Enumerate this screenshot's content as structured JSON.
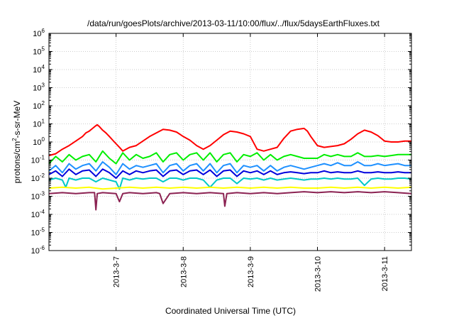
{
  "chart_data": {
    "type": "line",
    "title": "/data/run/goesPlots/archive/2013-03-11/10:00/flux/../flux/5daysEarthFluxes.txt",
    "xlabel": "Coordinated Universal Time (UTC)",
    "ylabel_parts": [
      "protons/cm",
      "2",
      "-s-sr-MeV"
    ],
    "yscale": "log",
    "ylim": [
      1e-06,
      1000000.0
    ],
    "xlim": [
      0,
      5.4
    ],
    "x_origin": "2013-03-06",
    "grid": true,
    "y_ticks": [
      {
        "base": "10",
        "exp": "-6",
        "value": -6
      },
      {
        "base": "10",
        "exp": "-5",
        "value": -5
      },
      {
        "base": "10",
        "exp": "-4",
        "value": -4
      },
      {
        "base": "10",
        "exp": "-3",
        "value": -3
      },
      {
        "base": "10",
        "exp": "-2",
        "value": -2
      },
      {
        "base": "10",
        "exp": "-1",
        "value": -1
      },
      {
        "base": "10",
        "exp": "0",
        "value": 0
      },
      {
        "base": "10",
        "exp": "1",
        "value": 1
      },
      {
        "base": "10",
        "exp": "2",
        "value": 2
      },
      {
        "base": "10",
        "exp": "3",
        "value": 3
      },
      {
        "base": "10",
        "exp": "4",
        "value": 4
      },
      {
        "base": "10",
        "exp": "5",
        "value": 5
      },
      {
        "base": "10",
        "exp": "6",
        "value": 6
      }
    ],
    "x_ticks": [
      {
        "label": "2013-3-7",
        "value": 1
      },
      {
        "label": "2013-3-8",
        "value": 2
      },
      {
        "label": "2013-3-9",
        "value": 3
      },
      {
        "label": "2013-3-10",
        "value": 4
      },
      {
        "label": "2013-3-11",
        "value": 5
      }
    ],
    "series": [
      {
        "color": "#ff0000",
        "x": [
          0,
          0.1,
          0.2,
          0.3,
          0.4,
          0.5,
          0.55,
          0.6,
          0.65,
          0.7,
          0.72,
          0.75,
          0.8,
          0.85,
          0.9,
          0.95,
          1.0,
          1.05,
          1.1,
          1.2,
          1.3,
          1.4,
          1.5,
          1.6,
          1.7,
          1.8,
          1.9,
          2.0,
          2.1,
          2.2,
          2.3,
          2.4,
          2.5,
          2.6,
          2.7,
          2.8,
          2.9,
          3.0,
          3.1,
          3.2,
          3.3,
          3.4,
          3.5,
          3.6,
          3.7,
          3.8,
          3.85,
          3.9,
          4.0,
          4.1,
          4.2,
          4.3,
          4.4,
          4.5,
          4.6,
          4.7,
          4.8,
          4.9,
          5.0,
          5.1,
          5.2,
          5.3,
          5.4
        ],
        "y": [
          -0.75,
          -0.65,
          -0.4,
          -0.2,
          0.05,
          0.3,
          0.5,
          0.6,
          0.75,
          0.9,
          0.95,
          0.85,
          0.65,
          0.5,
          0.3,
          0.1,
          -0.1,
          -0.3,
          -0.5,
          -0.3,
          -0.2,
          0.05,
          0.3,
          0.5,
          0.7,
          0.65,
          0.55,
          0.3,
          0.1,
          -0.2,
          -0.4,
          -0.2,
          0.1,
          0.4,
          0.6,
          0.55,
          0.45,
          0.3,
          -0.4,
          -0.5,
          -0.4,
          -0.3,
          0.2,
          0.6,
          0.7,
          0.75,
          0.6,
          0.3,
          -0.2,
          -0.3,
          -0.25,
          -0.2,
          -0.1,
          0.15,
          0.45,
          0.65,
          0.55,
          0.35,
          0.05,
          0.0,
          0.0,
          0.05,
          0.05
        ]
      },
      {
        "color": "#00ee00",
        "x": [
          0,
          0.1,
          0.2,
          0.3,
          0.4,
          0.5,
          0.6,
          0.7,
          0.8,
          0.9,
          1.0,
          1.1,
          1.2,
          1.3,
          1.4,
          1.5,
          1.6,
          1.7,
          1.8,
          1.9,
          2.0,
          2.1,
          2.2,
          2.3,
          2.4,
          2.5,
          2.6,
          2.7,
          2.8,
          2.9,
          3.0,
          3.1,
          3.2,
          3.3,
          3.4,
          3.5,
          3.6,
          3.7,
          3.8,
          3.9,
          4.0,
          4.1,
          4.2,
          4.3,
          4.4,
          4.5,
          4.6,
          4.7,
          4.8,
          4.9,
          5.0,
          5.1,
          5.2,
          5.3,
          5.4
        ],
        "y": [
          -1.2,
          -0.8,
          -1.1,
          -0.7,
          -1.0,
          -0.8,
          -0.7,
          -1.1,
          -0.5,
          -0.9,
          -1.2,
          -0.6,
          -1.0,
          -0.7,
          -0.9,
          -0.8,
          -0.6,
          -1.1,
          -0.7,
          -0.6,
          -1.0,
          -0.7,
          -0.6,
          -1.0,
          -0.6,
          -1.1,
          -0.7,
          -0.6,
          -1.1,
          -0.7,
          -0.8,
          -0.6,
          -1.0,
          -0.7,
          -1.0,
          -0.8,
          -0.7,
          -0.8,
          -0.9,
          -0.9,
          -0.9,
          -0.7,
          -0.8,
          -0.7,
          -0.8,
          -0.8,
          -0.6,
          -0.8,
          -0.8,
          -0.75,
          -0.8,
          -0.75,
          -0.7,
          -0.7,
          -0.7
        ]
      },
      {
        "color": "#1e90ff",
        "x": [
          0,
          0.1,
          0.2,
          0.3,
          0.4,
          0.5,
          0.6,
          0.7,
          0.8,
          0.9,
          1.0,
          1.1,
          1.2,
          1.3,
          1.4,
          1.5,
          1.6,
          1.7,
          1.8,
          1.9,
          2.0,
          2.1,
          2.2,
          2.3,
          2.4,
          2.5,
          2.6,
          2.7,
          2.8,
          2.9,
          3.0,
          3.1,
          3.2,
          3.3,
          3.4,
          3.5,
          3.6,
          3.7,
          3.8,
          3.9,
          4.0,
          4.1,
          4.2,
          4.3,
          4.4,
          4.5,
          4.6,
          4.7,
          4.8,
          4.9,
          5.0,
          5.1,
          5.2,
          5.3,
          5.4
        ],
        "y": [
          -1.6,
          -1.3,
          -1.7,
          -1.2,
          -1.5,
          -1.3,
          -1.2,
          -1.6,
          -1.1,
          -1.4,
          -1.8,
          -1.2,
          -1.5,
          -1.3,
          -1.4,
          -1.3,
          -1.2,
          -1.7,
          -1.3,
          -1.2,
          -1.6,
          -1.3,
          -1.2,
          -1.6,
          -1.2,
          -1.7,
          -1.3,
          -1.2,
          -1.7,
          -1.3,
          -1.4,
          -1.3,
          -1.6,
          -1.3,
          -1.6,
          -1.4,
          -1.3,
          -1.4,
          -1.5,
          -1.4,
          -1.3,
          -1.2,
          -1.3,
          -1.15,
          -1.3,
          -1.3,
          -1.1,
          -1.3,
          -1.3,
          -1.2,
          -1.3,
          -1.25,
          -1.2,
          -1.3,
          -1.3
        ]
      },
      {
        "color": "#0000dd",
        "x": [
          0,
          0.1,
          0.2,
          0.3,
          0.4,
          0.5,
          0.6,
          0.7,
          0.8,
          0.9,
          1.0,
          1.1,
          1.2,
          1.3,
          1.4,
          1.5,
          1.6,
          1.7,
          1.8,
          1.9,
          2.0,
          2.1,
          2.2,
          2.3,
          2.4,
          2.5,
          2.6,
          2.7,
          2.8,
          2.9,
          3.0,
          3.1,
          3.2,
          3.3,
          3.4,
          3.5,
          3.6,
          3.7,
          3.8,
          3.9,
          4.0,
          4.1,
          4.2,
          4.3,
          4.4,
          4.5,
          4.6,
          4.7,
          4.8,
          4.9,
          5.0,
          5.1,
          5.2,
          5.3,
          5.4
        ],
        "y": [
          -1.8,
          -1.6,
          -1.9,
          -1.5,
          -1.8,
          -1.6,
          -1.55,
          -1.9,
          -1.5,
          -1.7,
          -2.0,
          -1.6,
          -1.8,
          -1.6,
          -1.7,
          -1.6,
          -1.55,
          -1.9,
          -1.6,
          -1.55,
          -1.8,
          -1.6,
          -1.55,
          -1.8,
          -1.55,
          -1.9,
          -1.6,
          -1.55,
          -1.9,
          -1.6,
          -1.7,
          -1.6,
          -1.8,
          -1.6,
          -1.8,
          -1.7,
          -1.65,
          -1.7,
          -1.75,
          -1.7,
          -1.7,
          -1.6,
          -1.7,
          -1.65,
          -1.7,
          -1.7,
          -1.6,
          -1.7,
          -1.7,
          -1.65,
          -1.7,
          -1.7,
          -1.65,
          -1.7,
          -1.7
        ]
      },
      {
        "color": "#00c8c8",
        "x": [
          0,
          0.1,
          0.2,
          0.25,
          0.3,
          0.4,
          0.5,
          0.6,
          0.7,
          0.8,
          0.9,
          1.0,
          1.05,
          1.1,
          1.2,
          1.3,
          1.4,
          1.5,
          1.6,
          1.7,
          1.8,
          1.9,
          2.0,
          2.1,
          2.2,
          2.3,
          2.4,
          2.5,
          2.6,
          2.7,
          2.8,
          2.9,
          3.0,
          3.1,
          3.2,
          3.3,
          3.4,
          3.5,
          3.6,
          3.7,
          3.8,
          3.9,
          4.0,
          4.1,
          4.2,
          4.3,
          4.4,
          4.5,
          4.6,
          4.7,
          4.8,
          4.9,
          5.0,
          5.1,
          5.2,
          5.3,
          5.4
        ],
        "y": [
          -2.1,
          -2.0,
          -2.1,
          -2.5,
          -2.0,
          -2.1,
          -2.0,
          -2.0,
          -2.2,
          -2.0,
          -2.1,
          -2.2,
          -2.6,
          -2.0,
          -2.1,
          -2.0,
          -2.05,
          -2.0,
          -2.0,
          -2.2,
          -2.0,
          -2.0,
          -2.1,
          -2.0,
          -2.0,
          -2.1,
          -2.5,
          -2.1,
          -2.0,
          -2.0,
          -2.3,
          -2.0,
          -2.05,
          -2.0,
          -2.1,
          -2.0,
          -2.1,
          -2.05,
          -2.0,
          -2.05,
          -2.1,
          -2.05,
          -2.05,
          -2.0,
          -2.05,
          -2.0,
          -2.05,
          -2.05,
          -2.0,
          -2.4,
          -2.05,
          -2.0,
          -2.05,
          -2.05,
          -2.0,
          -2.0,
          -2.05
        ]
      },
      {
        "color": "#ffff00",
        "x": [
          0,
          0.2,
          0.4,
          0.6,
          0.8,
          1.0,
          1.2,
          1.4,
          1.6,
          1.8,
          2.0,
          2.2,
          2.4,
          2.6,
          2.8,
          3.0,
          3.2,
          3.4,
          3.6,
          3.8,
          4.0,
          4.2,
          4.4,
          4.6,
          4.8,
          5.0,
          5.2,
          5.4
        ],
        "y": [
          -2.55,
          -2.5,
          -2.55,
          -2.5,
          -2.6,
          -2.55,
          -2.5,
          -2.55,
          -2.5,
          -2.55,
          -2.5,
          -2.55,
          -2.5,
          -2.55,
          -2.5,
          -2.55,
          -2.5,
          -2.55,
          -2.5,
          -2.55,
          -2.55,
          -2.5,
          -2.55,
          -2.5,
          -2.55,
          -2.5,
          -2.55,
          -2.5
        ]
      },
      {
        "color": "#8b2252",
        "x": [
          0,
          0.2,
          0.4,
          0.6,
          0.68,
          0.7,
          0.72,
          0.8,
          1.0,
          1.05,
          1.1,
          1.2,
          1.4,
          1.6,
          1.65,
          1.7,
          1.8,
          2.0,
          2.2,
          2.4,
          2.6,
          2.62,
          2.65,
          2.8,
          3.0,
          3.2,
          3.4,
          3.6,
          3.8,
          4.0,
          4.2,
          4.4,
          4.6,
          4.8,
          5.0,
          5.2,
          5.4
        ],
        "y": [
          -2.85,
          -2.8,
          -2.85,
          -2.8,
          -2.8,
          -3.75,
          -2.85,
          -2.8,
          -2.85,
          -3.3,
          -2.85,
          -2.8,
          -2.85,
          -2.8,
          -2.85,
          -3.4,
          -2.85,
          -2.8,
          -2.85,
          -2.8,
          -2.85,
          -3.55,
          -2.85,
          -2.8,
          -2.85,
          -2.8,
          -2.85,
          -2.8,
          -2.75,
          -2.8,
          -2.75,
          -2.8,
          -2.75,
          -2.8,
          -2.75,
          -2.8,
          -2.85
        ]
      }
    ]
  }
}
